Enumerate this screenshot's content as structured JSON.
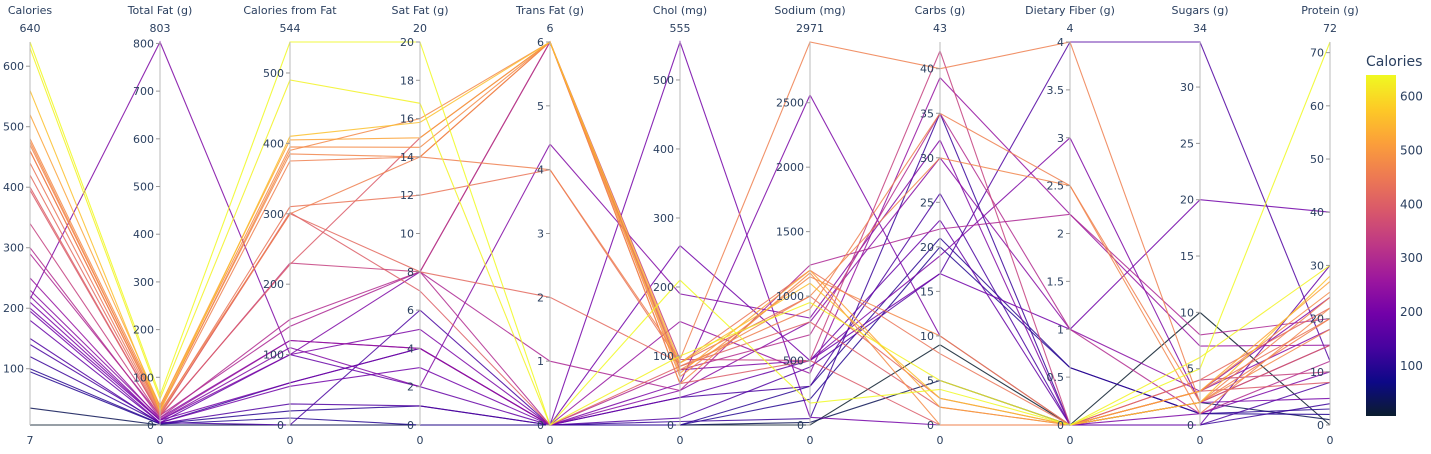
{
  "chart_data": {
    "type": "parallel_coordinates",
    "color_by": "Calories",
    "colorscale": [
      "#0d0887",
      "#46039f",
      "#7201a8",
      "#9c179e",
      "#bd3786",
      "#d8576b",
      "#ed7953",
      "#fb9f3a",
      "#fdca26",
      "#f0f921"
    ],
    "colorscale_dark_end": "#0b1d2e",
    "colorbar": {
      "title": "Calories",
      "range": [
        7,
        640
      ],
      "ticks": [
        100,
        200,
        300,
        400,
        500,
        600
      ],
      "tick_labels": [
        "100",
        "200",
        "300",
        "400",
        "500",
        "600"
      ]
    },
    "dimensions": [
      {
        "label": "Calories",
        "range": [
          7,
          640
        ],
        "range_labels": [
          "7",
          "640"
        ],
        "ticks": [
          100,
          200,
          300,
          400,
          500,
          600
        ],
        "tick_labels": [
          "100",
          "200",
          "300",
          "400",
          "500",
          "600"
        ]
      },
      {
        "label": "Total Fat (g)",
        "range": [
          0,
          803
        ],
        "range_labels": [
          "0",
          "803"
        ],
        "ticks": [
          0,
          100,
          200,
          300,
          400,
          500,
          600,
          700,
          800
        ],
        "tick_labels": [
          "0",
          "100",
          "200",
          "300",
          "400",
          "500",
          "600",
          "700",
          "800"
        ]
      },
      {
        "label": "Calories from Fat",
        "range": [
          0,
          544
        ],
        "range_labels": [
          "0",
          "544"
        ],
        "ticks": [
          0,
          100,
          200,
          300,
          400,
          500
        ],
        "tick_labels": [
          "0",
          "100",
          "200",
          "300",
          "400",
          "500"
        ]
      },
      {
        "label": "Sat Fat (g)",
        "range": [
          0,
          20
        ],
        "range_labels": [
          "0",
          "20"
        ],
        "ticks": [
          0,
          2,
          4,
          6,
          8,
          10,
          12,
          14,
          16,
          18,
          20
        ],
        "tick_labels": [
          "0",
          "2",
          "4",
          "6",
          "8",
          "10",
          "12",
          "14",
          "16",
          "18",
          "20"
        ]
      },
      {
        "label": "Trans Fat (g)",
        "range": [
          0,
          6
        ],
        "range_labels": [
          "0",
          "6"
        ],
        "ticks": [
          0,
          1,
          2,
          3,
          4,
          5,
          6
        ],
        "tick_labels": [
          "0",
          "1",
          "2",
          "3",
          "4",
          "5",
          "6"
        ]
      },
      {
        "label": "Chol (mg)",
        "range": [
          0,
          555
        ],
        "range_labels": [
          "0",
          "555"
        ],
        "ticks": [
          0,
          100,
          200,
          300,
          400,
          500
        ],
        "tick_labels": [
          "0",
          "100",
          "200",
          "300",
          "400",
          "500"
        ]
      },
      {
        "label": "Sodium (mg)",
        "range": [
          0,
          2971
        ],
        "range_labels": [
          "0",
          "2971"
        ],
        "ticks": [
          0,
          500,
          1000,
          1500,
          2000,
          2500
        ],
        "tick_labels": [
          "0",
          "500",
          "1000",
          "1500",
          "2000",
          "2500"
        ]
      },
      {
        "label": "Carbs (g)",
        "range": [
          0,
          43
        ],
        "range_labels": [
          "0",
          "43"
        ],
        "ticks": [
          0,
          5,
          10,
          15,
          20,
          25,
          30,
          35,
          40
        ],
        "tick_labels": [
          "0",
          "5",
          "10",
          "15",
          "20",
          "25",
          "30",
          "35",
          "40"
        ]
      },
      {
        "label": "Dietary Fiber (g)",
        "range": [
          0,
          4
        ],
        "range_labels": [
          "0",
          "4"
        ],
        "ticks": [
          0,
          0.5,
          1,
          1.5,
          2,
          2.5,
          3,
          3.5,
          4
        ],
        "tick_labels": [
          "0",
          "0.5",
          "1",
          "1.5",
          "2",
          "2.5",
          "3",
          "3.5",
          "4"
        ]
      },
      {
        "label": "Sugars (g)",
        "range": [
          0,
          34
        ],
        "range_labels": [
          "0",
          "34"
        ],
        "ticks": [
          0,
          5,
          10,
          15,
          20,
          25,
          30
        ],
        "tick_labels": [
          "0",
          "5",
          "10",
          "15",
          "20",
          "25",
          "30"
        ]
      },
      {
        "label": "Protein (g)",
        "range": [
          0,
          72
        ],
        "range_labels": [
          "0",
          "72"
        ],
        "ticks": [
          0,
          10,
          20,
          30,
          40,
          50,
          60,
          70
        ],
        "tick_labels": [
          "0",
          "10",
          "20",
          "30",
          "40",
          "50",
          "60",
          "70"
        ]
      }
    ],
    "rows": [
      [
        640,
        62,
        544,
        20,
        0,
        210,
        170,
        4,
        0,
        5,
        72
      ],
      [
        630,
        55,
        490,
        16.8,
        0,
        100,
        950,
        5,
        0,
        6,
        30
      ],
      [
        560,
        30,
        410,
        15.8,
        6,
        90,
        1100,
        3,
        0,
        2,
        28
      ],
      [
        520,
        40,
        405,
        15,
        6,
        75,
        1200,
        2,
        0,
        3,
        27
      ],
      [
        480,
        40,
        395,
        14.5,
        6,
        60,
        1180,
        0,
        0,
        3,
        25
      ],
      [
        470,
        35,
        385,
        14,
        6,
        80,
        1000,
        30,
        2.5,
        1,
        22
      ],
      [
        460,
        30,
        375,
        14,
        6,
        85,
        900,
        35,
        2.5,
        2,
        20
      ],
      [
        475,
        33,
        390,
        16,
        6,
        70,
        1150,
        10,
        0,
        2,
        18
      ],
      [
        460,
        28,
        300,
        14,
        4,
        95,
        2971,
        40,
        4,
        2,
        24
      ],
      [
        440,
        25,
        310,
        12,
        4,
        90,
        1200,
        8,
        0,
        3,
        20
      ],
      [
        420,
        22,
        300,
        8,
        2,
        90,
        1000,
        3,
        0,
        4,
        22
      ],
      [
        400,
        20,
        302,
        7,
        0,
        85,
        800,
        2,
        0,
        2,
        15
      ],
      [
        395,
        20,
        228,
        15,
        6,
        60,
        500,
        0,
        0,
        3,
        8
      ],
      [
        340,
        18,
        230,
        8,
        6,
        95,
        500,
        42,
        0,
        4,
        10
      ],
      [
        300,
        15,
        150,
        8,
        0,
        80,
        700,
        35,
        1,
        1,
        12
      ],
      [
        290,
        20,
        140,
        8,
        1,
        50,
        1240,
        22,
        2.2,
        8,
        20
      ],
      [
        250,
        12,
        120,
        4,
        0,
        150,
        400,
        39,
        2.2,
        7,
        15
      ],
      [
        230,
        15,
        120,
        4,
        0,
        50,
        800,
        30,
        1,
        3,
        18
      ],
      [
        220,
        10,
        110,
        2,
        4.4,
        190,
        830,
        32,
        0,
        3,
        24
      ],
      [
        215,
        803,
        100,
        8,
        6,
        80,
        500,
        19,
        3,
        2,
        15
      ],
      [
        210,
        10,
        100,
        5,
        0,
        60,
        2560,
        10,
        0,
        1,
        10
      ],
      [
        200,
        10,
        60,
        4,
        0,
        555,
        60,
        0,
        0,
        2,
        5
      ],
      [
        195,
        5,
        55,
        3,
        0,
        260,
        500,
        17,
        1,
        20,
        40
      ],
      [
        180,
        5,
        100,
        2,
        0,
        40,
        500,
        23,
        0,
        0,
        30
      ],
      [
        150,
        3,
        30,
        1,
        0,
        10,
        450,
        17,
        4,
        34,
        12
      ],
      [
        140,
        5,
        0,
        6,
        0,
        40,
        300,
        26,
        0,
        0,
        8
      ],
      [
        120,
        5,
        60,
        4,
        0,
        5,
        50,
        35,
        0,
        0,
        4
      ],
      [
        100,
        3,
        20,
        1,
        0,
        0,
        300,
        21,
        0.6,
        1,
        3
      ],
      [
        95,
        2,
        10,
        0,
        0,
        0,
        200,
        20,
        0.6,
        1,
        2
      ],
      [
        35,
        0,
        0,
        0,
        0,
        0,
        20,
        5,
        0,
        2,
        1
      ],
      [
        7,
        0,
        0,
        0,
        0,
        0,
        0,
        9,
        0,
        10,
        0
      ]
    ]
  }
}
